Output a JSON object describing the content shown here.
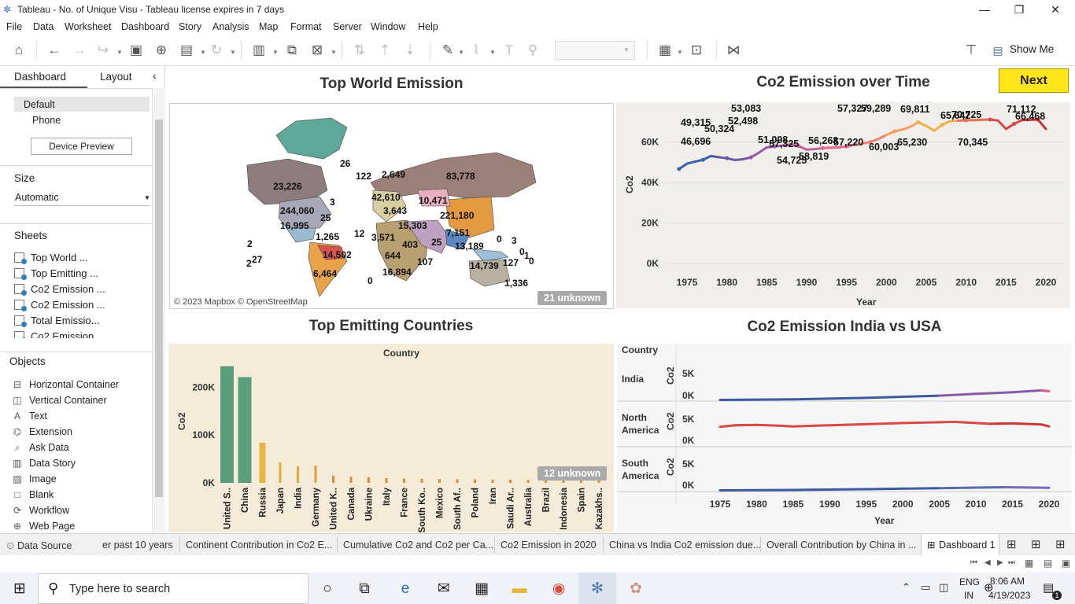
{
  "window": {
    "title": "Tableau - No. of Unique Visu - Tableau license expires in 7 days"
  },
  "menu": [
    "File",
    "Data",
    "Worksheet",
    "Dashboard",
    "Story",
    "Analysis",
    "Map",
    "Format",
    "Server",
    "Window",
    "Help"
  ],
  "toolbar": {
    "show_me": "Show Me"
  },
  "left_pane": {
    "tabs": {
      "dashboard": "Dashboard",
      "layout": "Layout"
    },
    "devices": {
      "default": "Default",
      "phone": "Phone",
      "preview_button": "Device Preview"
    },
    "size": {
      "heading": "Size",
      "value": "Automatic"
    },
    "sheets": {
      "heading": "Sheets",
      "items": [
        "Top World ...",
        "Top Emitting ...",
        "Co2 Emission ...",
        "Co2 Emission ...",
        "Total Emissio...",
        "Co2 Emission ..."
      ]
    },
    "objects": {
      "heading": "Objects",
      "items": [
        "Horizontal Container",
        "Vertical Container",
        "Text",
        "Extension",
        "Ask Data",
        "Data Story",
        "Image",
        "Blank",
        "Workflow",
        "Web Page"
      ]
    }
  },
  "dashboard": {
    "next_button": "Next",
    "map": {
      "title": "Top World Emission",
      "attribution": "© 2023 Mapbox © OpenStreetMap",
      "unknown": "21 unknown",
      "labels": [
        "26",
        "122",
        "2,649",
        "83,778",
        "23,226",
        "3",
        "42,610",
        "10,471",
        "244,060",
        "25",
        "3,643",
        "221,180",
        "16,995",
        "15,303",
        "1,265",
        "12",
        "3,571",
        "7,151",
        "0",
        "3",
        "2",
        "27",
        "14,502",
        "403",
        "25",
        "13,189",
        "0",
        "1",
        "0",
        "2",
        "644",
        "107",
        "127",
        "14,739",
        "6,464",
        "16,894",
        "0",
        "1,336"
      ]
    },
    "line_chart": {
      "title": "Co2 Emission over Time",
      "xlabel": "Year",
      "ylabel": "Co2"
    },
    "bar_chart": {
      "title": "Top Emitting Countries",
      "header": "Country",
      "ylabel": "Co2",
      "unknown": "12 unknown"
    },
    "small_multiples": {
      "title": "Co2 Emission India vs USA",
      "header": "Country",
      "xlabel": "Year",
      "ylabel": "Co2",
      "rows": [
        {
          "l1": "India",
          "l2": ""
        },
        {
          "l1": "North",
          "l2": "America"
        },
        {
          "l1": "South",
          "l2": "America"
        }
      ],
      "ticks_y": [
        "5K",
        "0K"
      ]
    }
  },
  "chart_data": [
    {
      "type": "line",
      "title": "Co2 Emission over Time",
      "xlabel": "Year",
      "ylabel": "Co2",
      "ylim": [
        0,
        75000
      ],
      "yticks": [
        "0K",
        "20K",
        "40K",
        "60K"
      ],
      "xticks": [
        "1975",
        "1980",
        "1985",
        "1990",
        "1995",
        "2000",
        "2005",
        "2010",
        "2015",
        "2020"
      ],
      "x": [
        1974,
        1975,
        1976,
        1977,
        1978,
        1979,
        1980,
        1981,
        1982,
        1983,
        1984,
        1985,
        1986,
        1987,
        1988,
        1989,
        1990,
        1991,
        1992,
        1993,
        1994,
        1995,
        1996,
        1997,
        1998,
        1999,
        2000,
        2001,
        2002,
        2003,
        2004,
        2005,
        2006,
        2007,
        2008,
        2009,
        2010,
        2011,
        2012,
        2013,
        2014,
        2015,
        2016,
        2017,
        2018,
        2019,
        2020
      ],
      "y": [
        46696,
        49315,
        50324,
        51200,
        53083,
        52498,
        52000,
        51098,
        51500,
        52400,
        54725,
        57325,
        57800,
        58300,
        58819,
        58000,
        56268,
        56500,
        57000,
        57220,
        57327,
        57800,
        58600,
        59289,
        60003,
        61500,
        63500,
        65230,
        66200,
        67500,
        69811,
        67900,
        65642,
        68500,
        70345,
        70600,
        70725,
        70800,
        71000,
        71112,
        70600,
        66468,
        69000,
        70800,
        71000,
        71112,
        66468
      ],
      "labels": [
        "46,696",
        "49,315",
        "50,324",
        "53,083",
        "52,498",
        "51,098",
        "54,725",
        "57,325",
        "58,819",
        "56,268",
        "57,220",
        "57,327",
        "59,289",
        "60,003",
        "65,230",
        "69,811",
        "65,642",
        "70,345",
        "70,725",
        "71,112",
        "66,468"
      ]
    },
    {
      "type": "bar",
      "title": "Top Emitting Countries",
      "ylabel": "Co2",
      "ylim": [
        0,
        245000
      ],
      "yticks": [
        "0K",
        "100K",
        "200K"
      ],
      "categories": [
        "United S..",
        "China",
        "Russia",
        "Japan",
        "India",
        "Germany",
        "United K..",
        "Canada",
        "Ukraine",
        "Italy",
        "France",
        "South Ko..",
        "Mexico",
        "South Af..",
        "Poland",
        "Iran",
        "Saudi Ar..",
        "Australia",
        "Brazil",
        "Indonesia",
        "Spain",
        "Kazakhs.."
      ],
      "values": [
        244060,
        221180,
        83778,
        42610,
        35000,
        36000,
        15000,
        13000,
        12000,
        10000,
        9000,
        8500,
        8000,
        7700,
        7400,
        7100,
        6800,
        6500,
        6300,
        6000,
        5900,
        5700
      ],
      "colors": [
        "#5a9e7c",
        "#5a9e7c",
        "#e8b446",
        "#e8a83e",
        "#e8a83e",
        "#e39b3e",
        "#e08a3a",
        "#e08a3a",
        "#e08a3a",
        "#e08a3a",
        "#e08a3a",
        "#e08a3a",
        "#e08a3a",
        "#e08a3a",
        "#e08a3a",
        "#e08a3a",
        "#e08a3a",
        "#e08a3a",
        "#e08a3a",
        "#e08a3a",
        "#e08a3a",
        "#e08a3a"
      ]
    },
    {
      "type": "line",
      "title": "Co2 Emission India vs USA",
      "xlabel": "Year",
      "ylim": [
        0,
        7000
      ],
      "xticks": [
        "1975",
        "1980",
        "1985",
        "1990",
        "1995",
        "2000",
        "2005",
        "2010",
        "2015",
        "2020"
      ],
      "series": [
        {
          "name": "India",
          "x": [
            1975,
            1985,
            1995,
            2005,
            2010,
            2015,
            2019,
            2020
          ],
          "y": [
            100,
            250,
            650,
            1200,
            1700,
            2100,
            2600,
            2400
          ]
        },
        {
          "name": "North America",
          "x": [
            1975,
            1977,
            1980,
            1983,
            1985,
            1988,
            1990,
            1995,
            2000,
            2005,
            2007,
            2010,
            2012,
            2015,
            2018,
            2019,
            2020
          ],
          "y": [
            5000,
            5400,
            5500,
            5300,
            5100,
            5300,
            5400,
            5700,
            6000,
            6200,
            6300,
            6000,
            5800,
            5900,
            5700,
            5600,
            5100
          ]
        },
        {
          "name": "South America",
          "x": [
            1975,
            1985,
            1995,
            2005,
            2010,
            2014,
            2020
          ],
          "y": [
            100,
            200,
            400,
            650,
            800,
            900,
            750
          ]
        }
      ]
    }
  ],
  "tabs": [
    "Data Source",
    "er past 10 years",
    "Continent Contribution in Co2 E...",
    "Cumulative Co2 and Co2 per Ca...",
    "Co2 Emission in 2020",
    "China vs India Co2 emission due...",
    "Overall Contribution by China in ...",
    "Dashboard 1"
  ],
  "taskbar": {
    "search_placeholder": "Type here to search",
    "lang1": "ENG",
    "lang2": "IN",
    "time": "8:06 AM",
    "date": "4/19/2023",
    "notif": "1"
  }
}
